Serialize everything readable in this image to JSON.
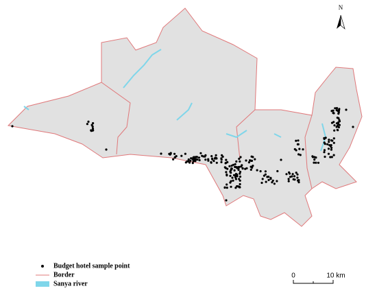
{
  "north_arrow": {
    "label": "N"
  },
  "legend": {
    "items": [
      {
        "label": "Budget hotel sample point"
      },
      {
        "label": "Border"
      },
      {
        "label": "Sanya river"
      }
    ]
  },
  "scale_bar": {
    "labels": [
      "0",
      "10 km"
    ]
  }
}
